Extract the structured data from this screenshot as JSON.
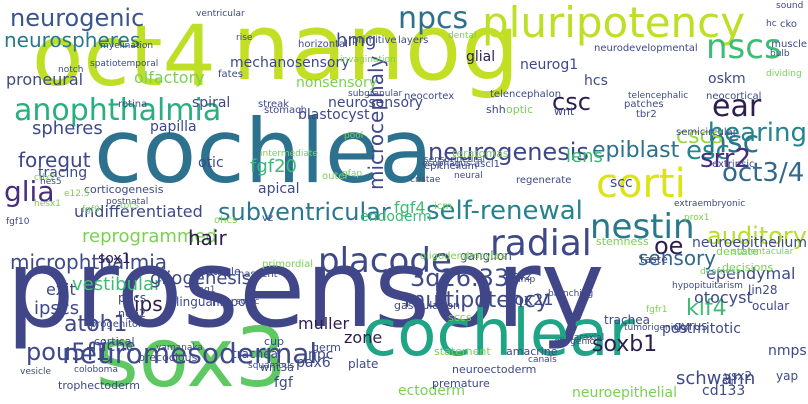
{
  "word_cloud": {
    "palette": "viridis",
    "words": [
      {
        "text": "prosensory",
        "color": "#404688"
      },
      {
        "text": "sox3",
        "color": "#5ec962"
      },
      {
        "text": "cochlea",
        "color": "#2c728e"
      },
      {
        "text": "oct4",
        "color": "#bddf26"
      },
      {
        "text": "nanog",
        "color": "#c2df23"
      },
      {
        "text": "cochlear",
        "color": "#20a486"
      },
      {
        "text": "pluripotency",
        "color": "#bddf26"
      },
      {
        "text": "anophthalmia",
        "color": "#29af7f"
      },
      {
        "text": "nscs",
        "color": "#3fbc73"
      },
      {
        "text": "nsc",
        "color": "#2c728e"
      },
      {
        "text": "neurogenic",
        "color": "#39568c"
      },
      {
        "text": "npcs",
        "color": "#2d708e"
      },
      {
        "text": "ear",
        "color": "#2d1e51"
      },
      {
        "text": "corti",
        "color": "#dce319"
      },
      {
        "text": "glia",
        "color": "#472d7b"
      },
      {
        "text": "nestin",
        "color": "#2a788e"
      },
      {
        "text": "placode",
        "color": "#3e4989"
      },
      {
        "text": "radial",
        "color": "#3f4889"
      },
      {
        "text": "oct3/4",
        "color": "#31688e"
      },
      {
        "text": "subventricular",
        "color": "#2a778e"
      },
      {
        "text": "self-renewal",
        "color": "#26828e"
      },
      {
        "text": "neuromesodermal",
        "color": "#3e4a89"
      },
      {
        "text": "auditory",
        "color": "#b5de2b"
      },
      {
        "text": "hearing",
        "color": "#25848e"
      },
      {
        "text": "cscs",
        "color": "#98d83e"
      },
      {
        "text": "epiblast",
        "color": "#2d708e"
      },
      {
        "text": "esc",
        "color": "#25858e"
      },
      {
        "text": "srr2",
        "color": "#472d7b"
      },
      {
        "text": "neurogenesis",
        "color": "#3f4788"
      },
      {
        "text": "csc",
        "color": "#2d1e51"
      },
      {
        "text": "3q26.33",
        "color": "#3e4a89"
      },
      {
        "text": "multipotency",
        "color": "#3e4989"
      },
      {
        "text": "microcephaly",
        "color": "#3f4889"
      },
      {
        "text": "neurospheres",
        "color": "#2a788e"
      },
      {
        "text": "microphthalmia",
        "color": "#3e4a89"
      },
      {
        "text": "atoh1",
        "color": "#3e4989"
      },
      {
        "text": "pou5f1",
        "color": "#3e4989"
      },
      {
        "text": "reprogrammed",
        "color": "#7ad151"
      },
      {
        "text": "hair",
        "color": "#2d1e51"
      },
      {
        "text": "foregut",
        "color": "#3f4788"
      },
      {
        "text": "spheres",
        "color": "#3e4a89"
      },
      {
        "text": "fgf20",
        "color": "#3aba76"
      },
      {
        "text": "fgf4",
        "color": "#3fbc73"
      },
      {
        "text": "oe",
        "color": "#2d1e51"
      },
      {
        "text": "sensory",
        "color": "#31688e"
      },
      {
        "text": "klf4",
        "color": "#3fbc73"
      },
      {
        "text": "soxb1",
        "color": "#2d1e51"
      },
      {
        "text": "schwann",
        "color": "#3f4889"
      },
      {
        "text": "neuroepithelium",
        "color": "#3e4a89"
      },
      {
        "text": "vestibular",
        "color": "#3fbc73"
      },
      {
        "text": "gliogenesis",
        "color": "#3e4989"
      },
      {
        "text": "ipscs",
        "color": "#3e4989"
      },
      {
        "text": "ips",
        "color": "#2d1e51"
      },
      {
        "text": "ependymal",
        "color": "#3e4a89"
      },
      {
        "text": "otocyst",
        "color": "#3e4a89"
      },
      {
        "text": "sox21",
        "color": "#3e4989"
      },
      {
        "text": "muller",
        "color": "#2d1e51"
      },
      {
        "text": "lens",
        "color": "#3aba76"
      },
      {
        "text": "scc",
        "color": "#3e4a89"
      },
      {
        "text": "niche",
        "color": "#3e4989"
      },
      {
        "text": "exit",
        "color": "#3e4989"
      },
      {
        "text": "npc",
        "color": "#3e4989"
      },
      {
        "text": "zone",
        "color": "#2d1e51"
      },
      {
        "text": "fgf",
        "color": "#3e4989"
      },
      {
        "text": "pax6",
        "color": "#3e4989"
      },
      {
        "text": "ectoderm",
        "color": "#7ad151"
      },
      {
        "text": "neuroepithelial",
        "color": "#7ad151"
      },
      {
        "text": "cd133",
        "color": "#3e4989"
      },
      {
        "text": "postmitotic",
        "color": "#3e4989"
      },
      {
        "text": "nmps",
        "color": "#3e4989"
      },
      {
        "text": "hmg",
        "color": "#3e4989"
      },
      {
        "text": "glial",
        "color": "#2d1e51"
      },
      {
        "text": "neurog1",
        "color": "#3e4989"
      },
      {
        "text": "hcs",
        "color": "#3e4989"
      },
      {
        "text": "oskm",
        "color": "#3e4989"
      },
      {
        "text": "spiral",
        "color": "#3e4989"
      },
      {
        "text": "blastocyst",
        "color": "#3e4989"
      },
      {
        "text": "papilla",
        "color": "#3e4989"
      },
      {
        "text": "otic",
        "color": "#3e4989"
      },
      {
        "text": "apical",
        "color": "#3e4989"
      },
      {
        "text": "undifferentiated",
        "color": "#3e4989"
      },
      {
        "text": "neurosensory",
        "color": "#3e4989"
      },
      {
        "text": "endoderm",
        "color": "#3aba76"
      },
      {
        "text": "olfactory",
        "color": "#7ad151"
      },
      {
        "text": "proneural",
        "color": "#3e4989"
      },
      {
        "text": "mechanosensory",
        "color": "#3e4989"
      },
      {
        "text": "nonsensory",
        "color": "#7ad151"
      },
      {
        "text": "sox1",
        "color": "#2d1e51"
      },
      {
        "text": "tracing",
        "color": "#3e4989"
      },
      {
        "text": "ganglion",
        "color": "#3e4989"
      },
      {
        "text": "svz",
        "color": "#3e4989"
      },
      {
        "text": "lin28",
        "color": "#3e4989"
      },
      {
        "text": "ocular",
        "color": "#3e4989"
      },
      {
        "text": "vsx2",
        "color": "#3e4989"
      },
      {
        "text": "yap",
        "color": "#3e4989"
      },
      {
        "text": "dentate",
        "color": "#7ad151"
      },
      {
        "text": "decisions",
        "color": "#7ad151"
      },
      {
        "text": "pgcs",
        "color": "#3e4989"
      },
      {
        "text": "ngn2",
        "color": "#3e4989"
      },
      {
        "text": "cortical",
        "color": "#3e4989"
      },
      {
        "text": "lingual",
        "color": "#3e4989"
      },
      {
        "text": "hippo",
        "color": "#3e4989"
      },
      {
        "text": "cup",
        "color": "#3e4989"
      },
      {
        "text": "gastrulation",
        "color": "#3e4989"
      },
      {
        "text": "statement",
        "color": "#7ad151"
      },
      {
        "text": "amacrine",
        "color": "#3e4989"
      },
      {
        "text": "trachea",
        "color": "#3e4989"
      },
      {
        "text": "gyrus",
        "color": "#3e4989"
      },
      {
        "text": "tracheal",
        "color": "#3e4989"
      },
      {
        "text": "precocious",
        "color": "#3e4989"
      },
      {
        "text": "plate",
        "color": "#3e4989"
      },
      {
        "text": "wnt3a",
        "color": "#3e4989"
      },
      {
        "text": "germ",
        "color": "#3e4989"
      },
      {
        "text": "sccs",
        "color": "#7ad151"
      },
      {
        "text": "premature",
        "color": "#3e4989"
      },
      {
        "text": "neuroectoderm",
        "color": "#3e4989"
      },
      {
        "text": "trophectoderm",
        "color": "#3e4989"
      },
      {
        "text": "progenitors",
        "color": "#3e4989"
      },
      {
        "text": "taste",
        "color": "#3e4989"
      },
      {
        "text": "utricle",
        "color": "#3e4989"
      },
      {
        "text": "nascent",
        "color": "#3e4989"
      },
      {
        "text": "stemness",
        "color": "#7ad151"
      },
      {
        "text": "corticogenesis",
        "color": "#3e4989"
      },
      {
        "text": "primitive",
        "color": "#3e4989"
      },
      {
        "text": "layers",
        "color": "#3e4989"
      },
      {
        "text": "teratomas",
        "color": "#7ad151"
      },
      {
        "text": "shh",
        "color": "#3e4989"
      },
      {
        "text": "wnt",
        "color": "#3e4989"
      },
      {
        "text": "optic",
        "color": "#7ad151"
      },
      {
        "text": "patches",
        "color": "#3e4989"
      },
      {
        "text": "tbr2",
        "color": "#3e4989"
      },
      {
        "text": "neocortex",
        "color": "#3e4989"
      },
      {
        "text": "retina",
        "color": "#3e4989"
      },
      {
        "text": "fates",
        "color": "#3e4989"
      },
      {
        "text": "streak",
        "color": "#3e4989"
      },
      {
        "text": "stomach",
        "color": "#3e4989"
      },
      {
        "text": "horizontal",
        "color": "#3e4989"
      },
      {
        "text": "telencephalon",
        "color": "#3e4989"
      },
      {
        "text": "neurodevelopmental",
        "color": "#3e4989"
      },
      {
        "text": "neocortical",
        "color": "#3e4989"
      },
      {
        "text": "semicircular",
        "color": "#3e4989"
      },
      {
        "text": "extrinsic",
        "color": "#3e4989"
      },
      {
        "text": "ascl1",
        "color": "#3e4989"
      },
      {
        "text": "epithelium",
        "color": "#3e4989"
      },
      {
        "text": "regenerate",
        "color": "#3e4989"
      },
      {
        "text": "outer",
        "color": "#7ad151"
      },
      {
        "text": "vz",
        "color": "#3e4989"
      },
      {
        "text": "icm",
        "color": "#7ad151"
      },
      {
        "text": "muscle",
        "color": "#3e4989"
      },
      {
        "text": "myelination",
        "color": "#3e4989"
      },
      {
        "text": "ventricular",
        "color": "#3e4989"
      },
      {
        "text": "dental",
        "color": "#7ad151"
      },
      {
        "text": "cko",
        "color": "#3e4989"
      },
      {
        "text": "hc",
        "color": "#3e4989"
      },
      {
        "text": "sound",
        "color": "#3e4989"
      },
      {
        "text": "notch",
        "color": "#3e4989"
      },
      {
        "text": "fgf10",
        "color": "#3e4989"
      },
      {
        "text": "ohcs",
        "color": "#7ad151"
      },
      {
        "text": "postnatal",
        "color": "#3e4989"
      },
      {
        "text": "hesx1",
        "color": "#7ad151"
      },
      {
        "text": "cdx2",
        "color": "#7ad151"
      },
      {
        "text": "sonic",
        "color": "#3e4989"
      },
      {
        "text": "squamous",
        "color": "#3e4989"
      },
      {
        "text": "coloboma",
        "color": "#3e4989"
      },
      {
        "text": "canals",
        "color": "#3e4989"
      },
      {
        "text": "fgfr1",
        "color": "#7ad151"
      },
      {
        "text": "primordial",
        "color": "#7ad151"
      },
      {
        "text": "jag1",
        "color": "#3e4989"
      },
      {
        "text": "mmp",
        "color": "#3e4989"
      },
      {
        "text": "hypopituitarism",
        "color": "#3e4989"
      },
      {
        "text": "tumorigenicity",
        "color": "#3e4989"
      },
      {
        "text": "extraembryonic",
        "color": "#3e4989"
      },
      {
        "text": "telencephalic",
        "color": "#3e4989"
      },
      {
        "text": "sustentacular",
        "color": "#7ad151"
      },
      {
        "text": "deafness",
        "color": "#7ad151"
      },
      {
        "text": "branching",
        "color": "#3e4989"
      },
      {
        "text": "oligodendrocytes",
        "color": "#7ad151"
      },
      {
        "text": "esophagus",
        "color": "#3e4989"
      },
      {
        "text": "sensorineural",
        "color": "#3e4989"
      },
      {
        "text": "cristae",
        "color": "#3e4989"
      },
      {
        "text": "neural",
        "color": "#3e4989"
      },
      {
        "text": "intermediate",
        "color": "#7ad151"
      },
      {
        "text": "pool",
        "color": "#7ad151"
      },
      {
        "text": "spatiotemporal",
        "color": "#3e4989"
      },
      {
        "text": "subgranular",
        "color": "#3e4989"
      },
      {
        "text": "rise",
        "color": "#3e4989"
      },
      {
        "text": "invagination",
        "color": "#7ad151"
      },
      {
        "text": "gfap",
        "color": "#7ad151"
      },
      {
        "text": "hes5",
        "color": "#3e4989"
      },
      {
        "text": "e12.5",
        "color": "#7ad151"
      },
      {
        "text": "fgf9",
        "color": "#7ad151"
      },
      {
        "text": "tpcs",
        "color": "#7ad151"
      },
      {
        "text": "vesicle",
        "color": "#3e4989"
      },
      {
        "text": "yamanaka",
        "color": "#3e4989"
      },
      {
        "text": "3q",
        "color": "#3e4989"
      },
      {
        "text": "gliogenic",
        "color": "#3e4989"
      },
      {
        "text": "paraxial",
        "color": "#3e4989"
      },
      {
        "text": "prox1",
        "color": "#7ad151"
      },
      {
        "text": "dividing",
        "color": "#7ad151"
      },
      {
        "text": "bulb",
        "color": "#3e4989"
      }
    ]
  }
}
